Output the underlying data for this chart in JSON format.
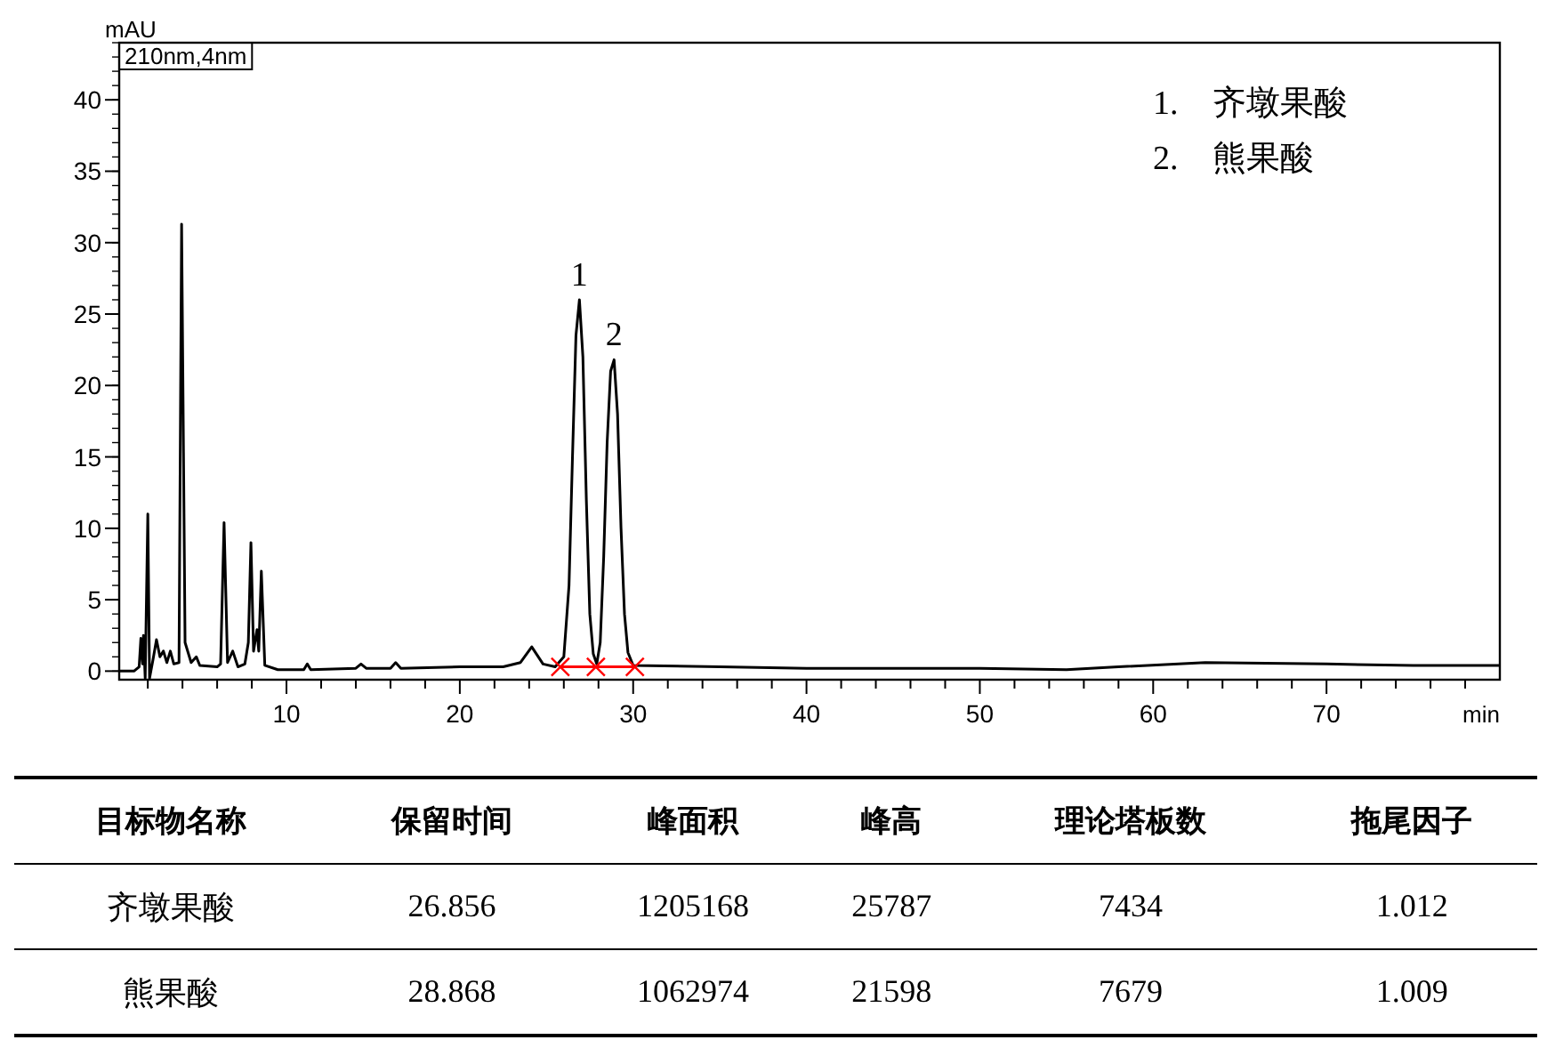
{
  "chart_data": {
    "type": "line",
    "xlabel": "min",
    "ylabel": "mAU",
    "xlim": [
      0.35,
      80
    ],
    "ylim": [
      -0.6,
      44
    ],
    "xticks": [
      {
        "value": 2,
        "label": null
      },
      {
        "value": 4,
        "label": null
      },
      {
        "value": 6,
        "label": null
      },
      {
        "value": 8,
        "label": null
      },
      10,
      {
        "value": 12,
        "label": null
      },
      {
        "value": 14,
        "label": null
      },
      {
        "value": 16,
        "label": null
      },
      {
        "value": 18,
        "label": null
      },
      20,
      {
        "value": 22,
        "label": null
      },
      {
        "value": 24,
        "label": null
      },
      {
        "value": 26,
        "label": null
      },
      {
        "value": 28,
        "label": null
      },
      30,
      {
        "value": 32,
        "label": null
      },
      {
        "value": 34,
        "label": null
      },
      {
        "value": 36,
        "label": null
      },
      {
        "value": 38,
        "label": null
      },
      40,
      {
        "value": 42,
        "label": null
      },
      {
        "value": 44,
        "label": null
      },
      {
        "value": 46,
        "label": null
      },
      {
        "value": 48,
        "label": null
      },
      50,
      {
        "value": 52,
        "label": null
      },
      {
        "value": 54,
        "label": null
      },
      {
        "value": 56,
        "label": null
      },
      {
        "value": 58,
        "label": null
      },
      60,
      {
        "value": 62,
        "label": null
      },
      {
        "value": 64,
        "label": null
      },
      {
        "value": 66,
        "label": null
      },
      {
        "value": 68,
        "label": null
      },
      70,
      {
        "value": 72,
        "label": null
      },
      {
        "value": 74,
        "label": null
      },
      {
        "value": 76,
        "label": null
      },
      {
        "value": 78,
        "label": null
      }
    ],
    "yticks": [
      0,
      5,
      10,
      15,
      20,
      25,
      30,
      35,
      40
    ],
    "grid": false,
    "marker": "none",
    "line_style": "solid",
    "series": [
      {
        "color": "#000000",
        "x": [
          0.35,
          1.2,
          1.5,
          1.6,
          1.7,
          1.75,
          1.85,
          2.0,
          2.1,
          2.3,
          2.5,
          2.7,
          2.9,
          3.1,
          3.3,
          3.5,
          3.8,
          3.95,
          4.15,
          4.5,
          4.8,
          5.0,
          6.0,
          6.2,
          6.4,
          6.6,
          6.9,
          7.2,
          7.6,
          7.8,
          7.95,
          8.1,
          8.3,
          8.4,
          8.55,
          8.75,
          9.5,
          11.0,
          11.2,
          11.4,
          14.0,
          14.3,
          14.6,
          16.0,
          16.3,
          16.6,
          20.0,
          22.5,
          23.5,
          24.15,
          24.8,
          25.5,
          26.0,
          26.3,
          26.5,
          26.7,
          26.9,
          27.1,
          27.3,
          27.5,
          27.7,
          27.9,
          28.1,
          28.3,
          28.5,
          28.7,
          28.9,
          29.1,
          29.3,
          29.5,
          29.7,
          30.0,
          35,
          40,
          50,
          55,
          58,
          63,
          70,
          75,
          80
        ],
        "values": [
          0,
          0,
          0.3,
          2.3,
          0.5,
          2.5,
          -0.5,
          11.0,
          -0.5,
          0.8,
          2.2,
          1.0,
          1.4,
          0.6,
          1.4,
          0.5,
          0.6,
          31.3,
          2.0,
          0.6,
          1.0,
          0.4,
          0.3,
          0.5,
          10.4,
          0.6,
          1.4,
          0.3,
          0.5,
          2.0,
          9.0,
          1.4,
          2.9,
          1.4,
          7.0,
          0.4,
          0.1,
          0.1,
          0.5,
          0.1,
          0.2,
          0.5,
          0.2,
          0.2,
          0.6,
          0.2,
          0.3,
          0.3,
          0.6,
          1.7,
          0.5,
          0.3,
          1.0,
          6,
          15,
          23.5,
          26.0,
          22,
          12,
          4,
          1.2,
          0.5,
          2,
          8,
          16,
          21,
          21.8,
          18,
          10,
          4,
          1.3,
          0.4,
          0.3,
          0.2,
          0.2,
          0.1,
          0.3,
          0.6,
          0.5,
          0.4,
          0.4
        ]
      },
      {
        "color": "#ff0000",
        "x": [
          25.8,
          27.85,
          30.1
        ],
        "values": [
          0.3,
          0.3,
          0.3
        ],
        "marker": "cross"
      }
    ],
    "annotations": [
      "210nm,4nm",
      "1.　齐墩果酸",
      "2.　熊果酸",
      {
        "text": "1",
        "x": 26.9,
        "y": 26.0
      },
      {
        "text": "2",
        "x": 28.9,
        "y": 21.8
      },
      "目标物名称",
      "保留时间",
      "峰面积",
      "峰高",
      "理论塔板数",
      "拖尾因子",
      "齐墩果酸",
      "26.856",
      "1205168",
      "25787",
      "7434",
      "1.012",
      "熊果酸",
      "28.868",
      "1062974",
      "21598",
      "7679",
      "1.009"
    ]
  }
}
